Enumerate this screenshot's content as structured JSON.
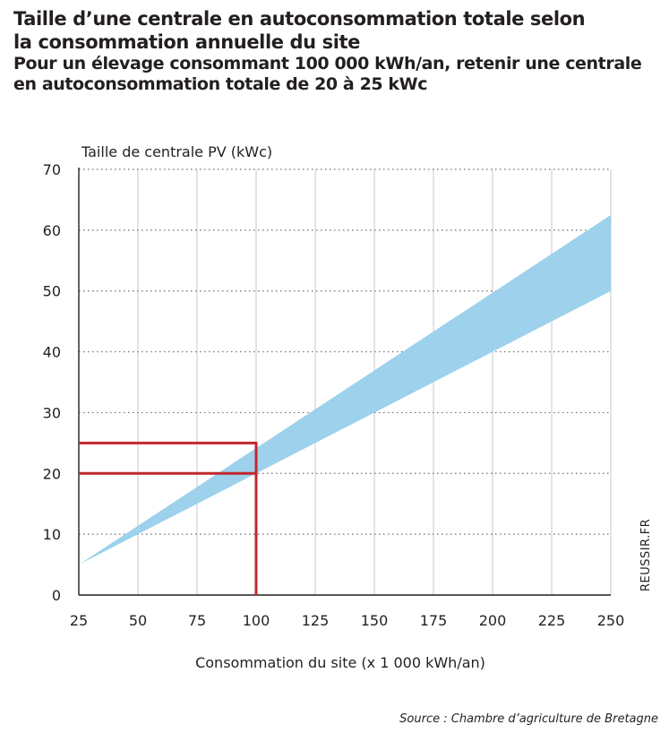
{
  "header": {
    "title_lines": [
      "Taille d’une centrale en autoconsommation totale selon",
      "la consommation annuelle du site"
    ],
    "subtitle_lines": [
      "Pour un élevage consommant 100 000 kWh/an, retenir une centrale",
      "en autoconsommation totale de 20 à 25 kWc"
    ]
  },
  "chart_data": {
    "type": "area",
    "ylabel": "Taille de centrale PV (kWc)",
    "xlabel": "Consommation du site (x 1 000 kWh/an)",
    "xlim": [
      25,
      250
    ],
    "ylim": [
      0,
      70
    ],
    "x_ticks": [
      "25",
      "50",
      "75",
      "100",
      "125",
      "150",
      "175",
      "200",
      "225",
      "250"
    ],
    "y_ticks": [
      "0",
      "10",
      "20",
      "30",
      "40",
      "50",
      "60",
      "70"
    ],
    "grid": true,
    "band": {
      "x": [
        25,
        250
      ],
      "lower": [
        5,
        50
      ],
      "upper": [
        5,
        62.5
      ],
      "color": "#9dd1ec"
    },
    "highlight": {
      "x": 100,
      "y_low": 20,
      "y_high": 25,
      "color": "#c0272d"
    }
  },
  "footer": {
    "source": "Source : Chambre d’agriculture de Bretagne",
    "watermark": "REUSSIR.FR"
  }
}
